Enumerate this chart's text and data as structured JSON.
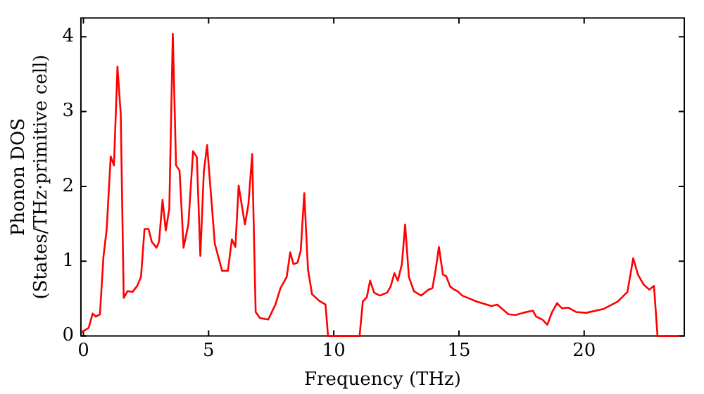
{
  "chart_data": {
    "type": "line",
    "xlabel": "Frequency (THz)",
    "ylabel": "Phonon DOS\n(States/THz·primitive cell)",
    "xlim": [
      -0.1,
      24
    ],
    "ylim": [
      0,
      4.25
    ],
    "xticks": [
      0,
      5,
      10,
      15,
      20
    ],
    "yticks": [
      0,
      1,
      2,
      3,
      4
    ],
    "grid": false,
    "legend": false,
    "marker": "none",
    "line_style": "solid",
    "series": [
      {
        "color": "#ff0000",
        "x": [
          -0.08,
          0.21,
          0.37,
          0.5,
          0.66,
          0.8,
          0.93,
          1.09,
          1.22,
          1.36,
          1.49,
          1.61,
          1.76,
          1.96,
          2.15,
          2.3,
          2.44,
          2.6,
          2.73,
          2.92,
          3.02,
          3.16,
          3.29,
          3.43,
          3.57,
          3.7,
          3.84,
          4.0,
          4.19,
          4.38,
          4.53,
          4.67,
          4.81,
          4.94,
          5.25,
          5.54,
          5.77,
          5.93,
          6.07,
          6.2,
          6.45,
          6.59,
          6.74,
          6.88,
          7.05,
          7.38,
          7.67,
          7.87,
          8.12,
          8.26,
          8.39,
          8.55,
          8.68,
          8.82,
          8.97,
          9.13,
          9.42,
          9.67,
          9.77,
          11.03,
          11.16,
          11.32,
          11.45,
          11.61,
          11.84,
          12.13,
          12.27,
          12.42,
          12.56,
          12.72,
          12.85,
          13.0,
          13.2,
          13.49,
          13.78,
          13.94,
          14.07,
          14.2,
          14.36,
          14.49,
          14.65,
          14.81,
          14.94,
          15.13,
          15.72,
          16.3,
          16.53,
          16.98,
          17.27,
          17.56,
          17.95,
          18.08,
          18.33,
          18.53,
          18.72,
          18.92,
          19.11,
          19.36,
          19.69,
          20.08,
          20.76,
          21.34,
          21.73,
          21.96,
          22.15,
          22.37,
          22.6,
          22.79,
          22.93,
          23.8
        ],
        "values": [
          0.05,
          0.11,
          0.3,
          0.26,
          0.29,
          1.06,
          1.43,
          2.4,
          2.28,
          3.6,
          2.97,
          0.51,
          0.6,
          0.59,
          0.67,
          0.79,
          1.43,
          1.43,
          1.26,
          1.18,
          1.26,
          1.82,
          1.41,
          1.7,
          4.04,
          2.28,
          2.21,
          1.18,
          1.49,
          2.47,
          2.39,
          1.07,
          2.2,
          2.55,
          1.23,
          0.87,
          0.87,
          1.29,
          1.19,
          2.01,
          1.49,
          1.76,
          2.43,
          0.32,
          0.24,
          0.22,
          0.42,
          0.64,
          0.79,
          1.12,
          0.96,
          0.98,
          1.14,
          1.91,
          0.89,
          0.56,
          0.47,
          0.42,
          0,
          0,
          0.46,
          0.52,
          0.74,
          0.58,
          0.54,
          0.58,
          0.66,
          0.84,
          0.74,
          0.96,
          1.49,
          0.79,
          0.6,
          0.54,
          0.62,
          0.64,
          0.89,
          1.19,
          0.82,
          0.8,
          0.66,
          0.62,
          0.6,
          0.54,
          0.46,
          0.4,
          0.42,
          0.29,
          0.28,
          0.31,
          0.34,
          0.26,
          0.22,
          0.15,
          0.32,
          0.44,
          0.37,
          0.38,
          0.32,
          0.31,
          0.36,
          0.46,
          0.59,
          1.04,
          0.82,
          0.69,
          0.62,
          0.67,
          0,
          0
        ]
      }
    ]
  }
}
